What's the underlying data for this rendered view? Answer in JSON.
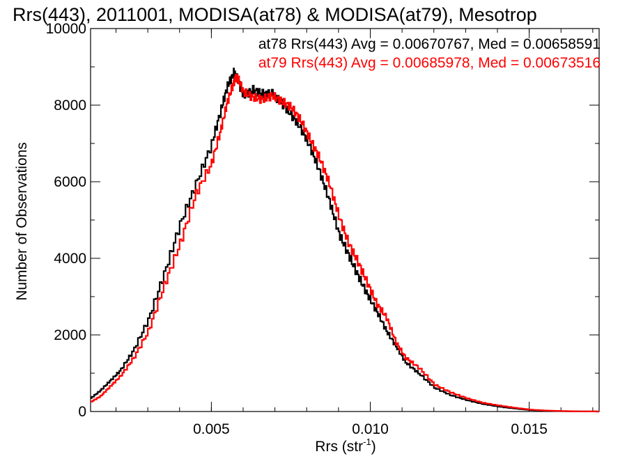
{
  "chart_data": {
    "type": "line",
    "title": "Rrs(443), 2011001, MODISA(at78) & MODISA(at79), Mesotrop",
    "xlabel": "Rrs (str",
    "xlabel_superscript": "-1",
    "xlabel_suffix": ")",
    "ylabel": "Number of Observations",
    "xlim": [
      0.0012,
      0.0172
    ],
    "ylim": [
      0,
      10000
    ],
    "x_ticks": [
      0.005,
      0.01,
      0.015
    ],
    "x_tick_labels": [
      "0.005",
      "0.010",
      "0.015"
    ],
    "y_ticks": [
      0,
      2000,
      4000,
      6000,
      8000,
      10000
    ],
    "y_tick_labels": [
      "0",
      "2000",
      "4000",
      "6000",
      "8000",
      "10000"
    ],
    "grid": false,
    "legend_position": "top-right",
    "line_style": "step",
    "annotations": [
      "at78 Rrs(443) Avg = 0.00670767, Med = 0.00658591",
      "at79 Rrs(443) Avg = 0.00685978, Med = 0.00673516"
    ],
    "series": [
      {
        "name": "at78",
        "color": "#000000",
        "x": [
          0.0012,
          0.0015,
          0.0018,
          0.0021,
          0.0025,
          0.003,
          0.0035,
          0.004,
          0.0045,
          0.005,
          0.0053,
          0.0055,
          0.0057,
          0.0058,
          0.006,
          0.0063,
          0.0066,
          0.0069,
          0.0072,
          0.0075,
          0.0078,
          0.0081,
          0.0084,
          0.0087,
          0.009,
          0.0093,
          0.0096,
          0.0099,
          0.0102,
          0.0105,
          0.0108,
          0.0111,
          0.0115,
          0.012,
          0.0125,
          0.013,
          0.0135,
          0.014,
          0.0145,
          0.015,
          0.0155,
          0.016,
          0.0165,
          0.0172
        ],
        "y": [
          350,
          550,
          800,
          1050,
          1550,
          2400,
          3600,
          4900,
          5950,
          7000,
          7900,
          8500,
          8850,
          8700,
          8250,
          8400,
          8300,
          8300,
          8050,
          7750,
          7400,
          6900,
          6250,
          5500,
          4650,
          4100,
          3550,
          3050,
          2600,
          2100,
          1700,
          1280,
          1000,
          620,
          430,
          300,
          200,
          130,
          80,
          40,
          20,
          10,
          5,
          0
        ]
      },
      {
        "name": "at79",
        "color": "#ff0000",
        "x": [
          0.0012,
          0.0015,
          0.0018,
          0.0021,
          0.0025,
          0.003,
          0.0035,
          0.004,
          0.0045,
          0.005,
          0.0053,
          0.0055,
          0.0057,
          0.0058,
          0.006,
          0.0063,
          0.0066,
          0.0069,
          0.0072,
          0.0075,
          0.0078,
          0.0081,
          0.0084,
          0.0087,
          0.009,
          0.0093,
          0.0096,
          0.0099,
          0.0102,
          0.0105,
          0.0108,
          0.0111,
          0.0115,
          0.012,
          0.0125,
          0.013,
          0.0135,
          0.014,
          0.0145,
          0.015,
          0.0155,
          0.016,
          0.0165,
          0.0172
        ],
        "y": [
          250,
          400,
          650,
          900,
          1350,
          2100,
          3300,
          4400,
          5700,
          6500,
          7400,
          8100,
          8600,
          8750,
          8350,
          8200,
          8150,
          8250,
          8100,
          7950,
          7600,
          7100,
          6600,
          5950,
          5100,
          4400,
          3900,
          3350,
          2800,
          2450,
          1800,
          1400,
          1150,
          700,
          500,
          350,
          230,
          160,
          100,
          50,
          25,
          12,
          5,
          0
        ]
      }
    ]
  }
}
